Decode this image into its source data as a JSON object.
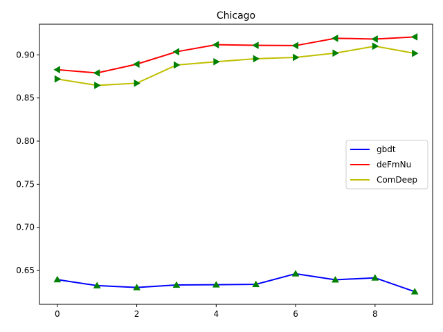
{
  "chart_data": {
    "type": "line",
    "title": "Chicago",
    "xlabel": "",
    "ylabel": "",
    "xlim": [
      -0.45,
      9.45
    ],
    "ylim": [
      0.6108,
      0.9355
    ],
    "xticks": [
      0,
      2,
      4,
      6,
      8
    ],
    "yticks": [
      0.65,
      0.7,
      0.75,
      0.8,
      0.85,
      0.9
    ],
    "grid": false,
    "legend_position": "center-right",
    "x": [
      0,
      1,
      2,
      3,
      4,
      5,
      6,
      7,
      8,
      9
    ],
    "series": [
      {
        "name": "gbdt",
        "color": "#0000ff",
        "marker": "triangle-up",
        "marker_color": "#008000",
        "values": [
          0.6395,
          0.6325,
          0.6303,
          0.6332,
          0.6335,
          0.634,
          0.6463,
          0.6393,
          0.6415,
          0.6255
        ]
      },
      {
        "name": "deFmNu",
        "color": "#ff0000",
        "marker": "triangle-left",
        "marker_color": "#008000",
        "values": [
          0.8828,
          0.879,
          0.8892,
          0.9036,
          0.9117,
          0.911,
          0.9107,
          0.9192,
          0.9183,
          0.9208
        ]
      },
      {
        "name": "ComDeep",
        "color": "#bfbf00",
        "marker": "triangle-right",
        "marker_color": "#008000",
        "values": [
          0.872,
          0.8646,
          0.8671,
          0.8882,
          0.892,
          0.8955,
          0.897,
          0.902,
          0.91,
          0.9017
        ]
      }
    ]
  }
}
